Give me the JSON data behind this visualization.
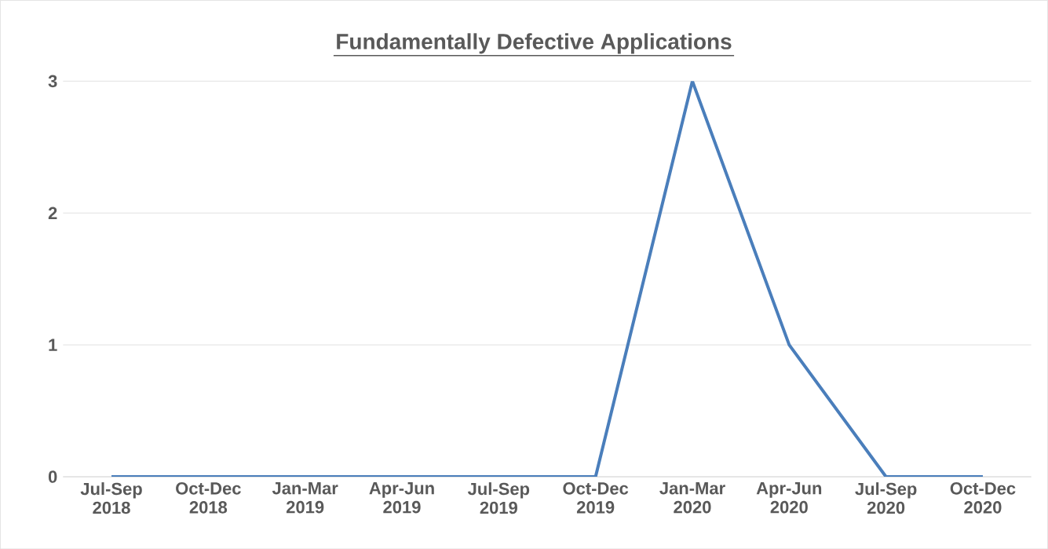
{
  "chart_data": {
    "type": "line",
    "title": "Fundamentally  Defective Applications",
    "categories": [
      "Jul-Sep 2018",
      "Oct-Dec 2018",
      "Jan-Mar 2019",
      "Apr-Jun 2019",
      "Jul-Sep 2019",
      "Oct-Dec 2019",
      "Jan-Mar 2020",
      "Apr-Jun 2020",
      "Jul-Sep 2020",
      "Oct-Dec 2020"
    ],
    "values": [
      0,
      0,
      0,
      0,
      0,
      0,
      3,
      1,
      0,
      0
    ],
    "color": "#4a7ebb",
    "ylim": [
      0,
      3
    ],
    "yticks": [
      0,
      1,
      2,
      3
    ],
    "grid": "y"
  }
}
